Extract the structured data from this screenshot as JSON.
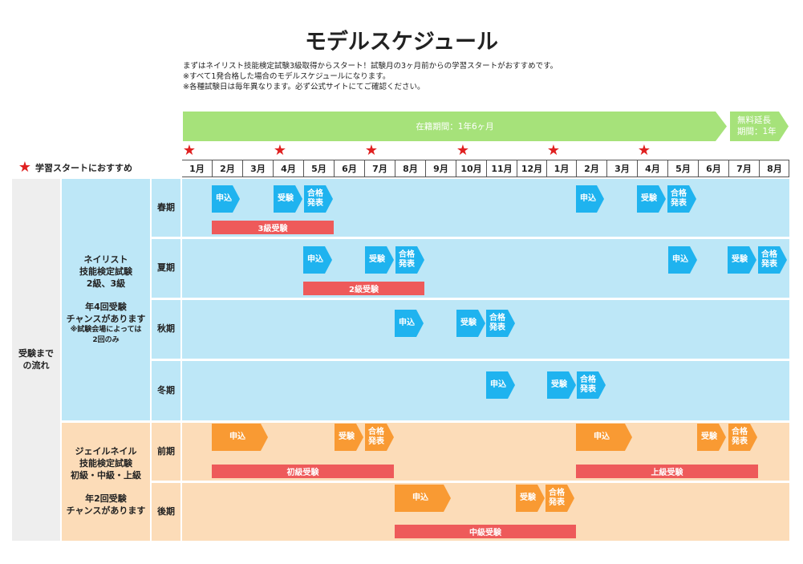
{
  "title": "モデルスケジュール",
  "notes": [
    "まずはネイリスト技能検定試験3級取得からスタート！試験月の3ヶ月前からの学習スタートがおすすめです。",
    "※すべて1発合格した場合のモデルスケジュールになります。",
    "※各種試験日は毎年異なります。必ず公式サイトにてご確認ください。"
  ],
  "enrollment_band": "在籍期間：1年6ヶ月",
  "extension_band": {
    "line1": "無料延長",
    "line2": "期間：1年"
  },
  "legend_label": "学習スタートにおすすめ",
  "star_glyph": "★",
  "months": [
    "1月",
    "2月",
    "3月",
    "4月",
    "5月",
    "6月",
    "7月",
    "8月",
    "9月",
    "10月",
    "11月",
    "12月",
    "1月",
    "2月",
    "3月",
    "4月",
    "5月",
    "6月",
    "7月",
    "8月"
  ],
  "recommended_start_month_indices": [
    0,
    3,
    6,
    9,
    12,
    15
  ],
  "left_label": {
    "line1": "受験まで",
    "line2": "の流れ"
  },
  "nailist": {
    "name": [
      "ネイリスト",
      "技能検定試験",
      "2級、3級"
    ],
    "chance": [
      "年4回受験",
      "チャンスがあります"
    ],
    "note": [
      "※試験会場によっては",
      "2回のみ"
    ],
    "seasons": [
      "春期",
      "夏期",
      "秋期",
      "冬期"
    ]
  },
  "jail": {
    "name": [
      "ジェイルネイル",
      "技能検定試験",
      "初級・中級・上級"
    ],
    "chance": [
      "年2回受験",
      "チャンスがあります"
    ],
    "terms": [
      "前期",
      "後期"
    ]
  },
  "steps": {
    "apply": "申込",
    "exam": "受験",
    "result1": "合格",
    "result2": "発表"
  },
  "exam_bars": {
    "level3": "3級受験",
    "level2": "2級受験",
    "beginner": "初級受験",
    "advanced": "上級受験",
    "intermediate": "中級受験"
  },
  "colors": {
    "blue_bg": "#bde7f7",
    "blue_step": "#1fb3ef",
    "orange_bg": "#fcdcb8",
    "orange_step": "#f99a33",
    "exam_bar": "#ee5a5a",
    "band": "#a6e27a",
    "star": "#e02020"
  }
}
